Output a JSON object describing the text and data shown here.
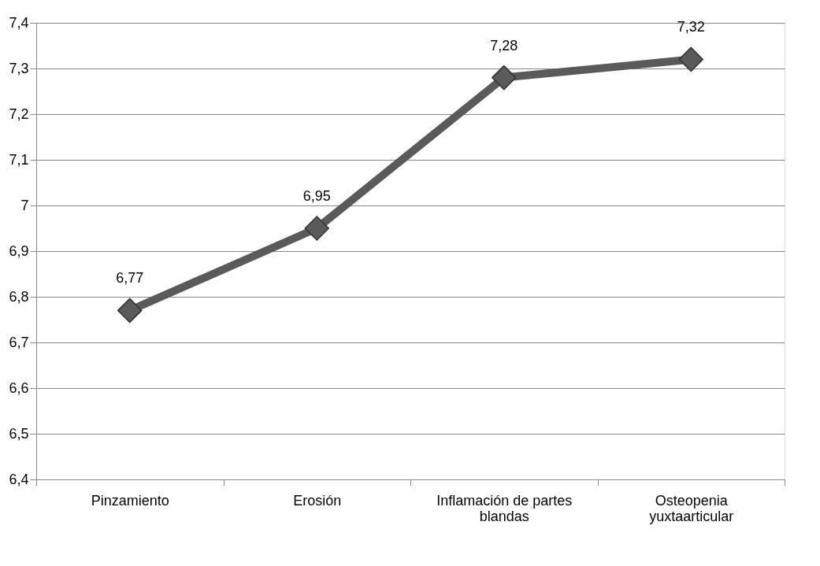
{
  "chart_data": {
    "type": "line",
    "categories": [
      "Pinzamiento",
      "Erosión",
      "Inflamación de partes blandas",
      "Osteopenia yuxtaarticular"
    ],
    "series": [
      {
        "color": "#5a5a5a",
        "values": [
          6.77,
          6.95,
          7.28,
          7.32
        ],
        "value_labels": [
          "6,77",
          "6,95",
          "7,28",
          "7,32"
        ]
      }
    ],
    "ylim": [
      6.4,
      7.4
    ],
    "yticks": [
      {
        "value": 6.4,
        "label": "6,4"
      },
      {
        "value": 6.5,
        "label": "6,5"
      },
      {
        "value": 6.6,
        "label": "6,6"
      },
      {
        "value": 6.7,
        "label": "6,7"
      },
      {
        "value": 6.8,
        "label": "6,8"
      },
      {
        "value": 6.9,
        "label": "6,9"
      },
      7,
      {
        "value": 7.1,
        "label": "7,1"
      },
      {
        "value": 7.2,
        "label": "7,2"
      },
      {
        "value": 7.3,
        "label": "7,3"
      },
      {
        "value": 7.4,
        "label": "7,4"
      }
    ],
    "grid": "y",
    "marker": "diamond",
    "line_style": "solid"
  }
}
